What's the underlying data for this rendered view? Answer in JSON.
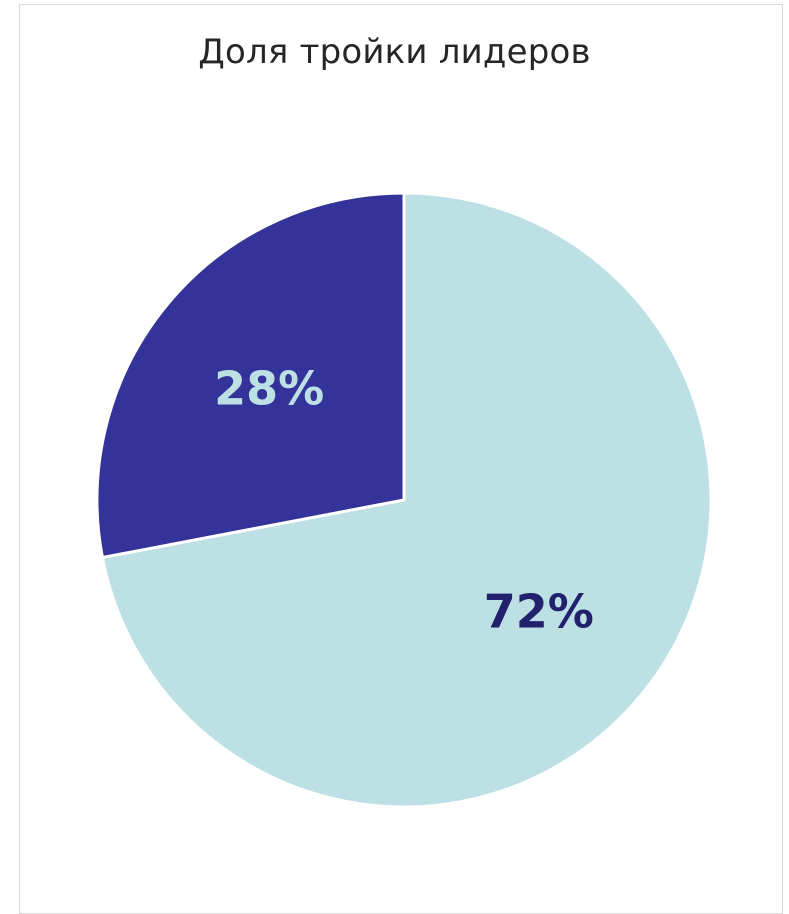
{
  "chart_data": {
    "type": "pie",
    "title": "Доля тройки лидеров",
    "slices": [
      {
        "value": 72,
        "label": "72%",
        "color": "#BCE0E4",
        "label_color": "#22216B"
      },
      {
        "value": 28,
        "label": "28%",
        "color": "#343399",
        "label_color": "#BCE0E4"
      }
    ],
    "start_angle_deg": 0,
    "direction": "clockwise",
    "legend": "none",
    "border_color": "#FFFFFF"
  }
}
